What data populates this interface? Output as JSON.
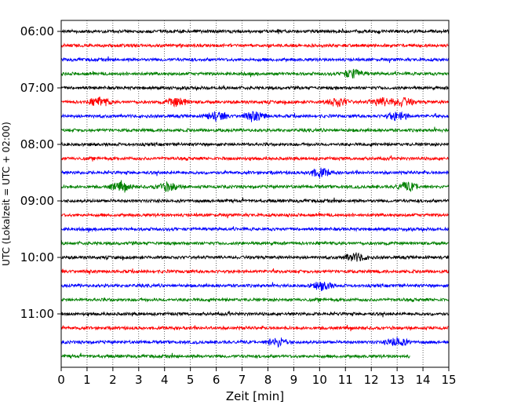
{
  "chart_data": {
    "type": "line",
    "xlabel": "Zeit  [min]",
    "ylabel": "UTC (Lokalzeit = UTC + 02:00)",
    "xlim": [
      0,
      15
    ],
    "x_ticks": [
      "0",
      "1",
      "2",
      "3",
      "4",
      "5",
      "6",
      "7",
      "8",
      "9",
      "10",
      "11",
      "12",
      "13",
      "14",
      "15"
    ],
    "y_tick_labels": [
      "06:00",
      "07:00",
      "08:00",
      "09:00",
      "10:00",
      "11:00"
    ],
    "grid": "vertical-dotted",
    "colors": [
      "#000000",
      "#ff0000",
      "#0000ff",
      "#008000"
    ],
    "traces": [
      {
        "start": "06:00",
        "color": "#000000",
        "end_min": 15
      },
      {
        "start": "06:15",
        "color": "#ff0000",
        "end_min": 15
      },
      {
        "start": "06:30",
        "color": "#0000ff",
        "end_min": 15
      },
      {
        "start": "06:45",
        "color": "#008000",
        "end_min": 15,
        "bursts": [
          11.3
        ]
      },
      {
        "start": "07:00",
        "color": "#000000",
        "end_min": 15
      },
      {
        "start": "07:15",
        "color": "#ff0000",
        "end_min": 15,
        "bursts": [
          1.5,
          4.5,
          10.7,
          12.4,
          13.2
        ]
      },
      {
        "start": "07:30",
        "color": "#0000ff",
        "end_min": 15,
        "bursts": [
          6,
          7.5,
          13
        ]
      },
      {
        "start": "07:45",
        "color": "#008000",
        "end_min": 15
      },
      {
        "start": "08:00",
        "color": "#000000",
        "end_min": 15
      },
      {
        "start": "08:15",
        "color": "#ff0000",
        "end_min": 15
      },
      {
        "start": "08:30",
        "color": "#0000ff",
        "end_min": 15,
        "bursts": [
          10
        ]
      },
      {
        "start": "08:45",
        "color": "#008000",
        "end_min": 15,
        "bursts": [
          2.3,
          4.1,
          13.4
        ]
      },
      {
        "start": "09:00",
        "color": "#000000",
        "end_min": 15
      },
      {
        "start": "09:15",
        "color": "#ff0000",
        "end_min": 15
      },
      {
        "start": "09:30",
        "color": "#0000ff",
        "end_min": 15
      },
      {
        "start": "09:45",
        "color": "#008000",
        "end_min": 15
      },
      {
        "start": "10:00",
        "color": "#000000",
        "end_min": 15,
        "bursts": [
          11.4
        ]
      },
      {
        "start": "10:15",
        "color": "#ff0000",
        "end_min": 15
      },
      {
        "start": "10:30",
        "color": "#0000ff",
        "end_min": 15,
        "bursts": [
          10.1
        ]
      },
      {
        "start": "10:45",
        "color": "#008000",
        "end_min": 15
      },
      {
        "start": "11:00",
        "color": "#000000",
        "end_min": 15
      },
      {
        "start": "11:15",
        "color": "#ff0000",
        "end_min": 15
      },
      {
        "start": "11:30",
        "color": "#0000ff",
        "end_min": 15,
        "bursts": [
          8.4,
          13
        ]
      },
      {
        "start": "11:45",
        "color": "#008000",
        "end_min": 13.5
      }
    ]
  }
}
